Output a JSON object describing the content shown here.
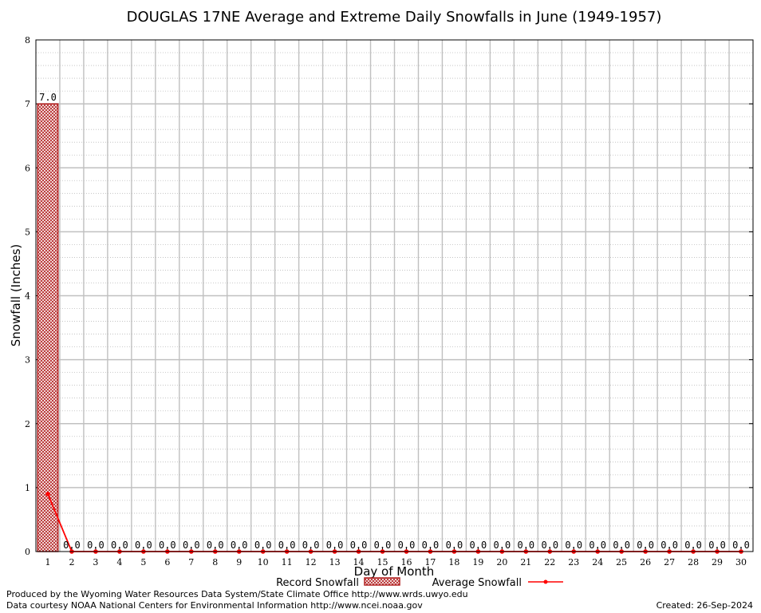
{
  "chart_data": {
    "type": "bar",
    "title": "DOUGLAS 17NE Average and Extreme Daily Snowfalls in June (1949-1957)",
    "xlabel": "Day of Month",
    "ylabel": "Snowfall (Inches)",
    "ylim": [
      0,
      8
    ],
    "yticks": [
      "0",
      "1",
      "2",
      "3",
      "4",
      "5",
      "6",
      "7",
      "8"
    ],
    "categories": [
      "1",
      "2",
      "3",
      "4",
      "5",
      "6",
      "7",
      "8",
      "9",
      "10",
      "11",
      "12",
      "13",
      "14",
      "15",
      "16",
      "17",
      "18",
      "19",
      "20",
      "21",
      "22",
      "23",
      "24",
      "25",
      "26",
      "27",
      "28",
      "29",
      "30"
    ],
    "series": [
      {
        "name": "Record Snowfall",
        "kind": "bar",
        "color": "#b22222",
        "values": [
          7.0,
          0.0,
          0.0,
          0.0,
          0.0,
          0.0,
          0.0,
          0.0,
          0.0,
          0.0,
          0.0,
          0.0,
          0.0,
          0.0,
          0.0,
          0.0,
          0.0,
          0.0,
          0.0,
          0.0,
          0.0,
          0.0,
          0.0,
          0.0,
          0.0,
          0.0,
          0.0,
          0.0,
          0.0,
          0.0
        ],
        "labels": [
          "7.0",
          "0.0",
          "0.0",
          "0.0",
          "0.0",
          "0.0",
          "0.0",
          "0.0",
          "0.0",
          "0.0",
          "0.0",
          "0.0",
          "0.0",
          "0.0",
          "0.0",
          "0.0",
          "0.0",
          "0.0",
          "0.0",
          "0.0",
          "0.0",
          "0.0",
          "0.0",
          "0.0",
          "0.0",
          "0.0",
          "0.0",
          "0.0",
          "0.0",
          "0.0"
        ]
      },
      {
        "name": "Average Snowfall",
        "kind": "line",
        "color": "#ff0000",
        "values": [
          0.9,
          0,
          0,
          0,
          0,
          0,
          0,
          0,
          0,
          0,
          0,
          0,
          0,
          0,
          0,
          0,
          0,
          0,
          0,
          0,
          0,
          0,
          0,
          0,
          0,
          0,
          0,
          0,
          0,
          0
        ]
      }
    ],
    "grid": true,
    "legend": "bottom-center"
  },
  "footer": {
    "credit_line1": "Produced by the Wyoming Water Resources Data System/State Climate Office http://www.wrds.uwyo.edu",
    "credit_line2": "Data courtesy NOAA National Centers for Environmental Information http://www.ncei.noaa.gov",
    "created": "Created:  26-Sep-2024"
  }
}
